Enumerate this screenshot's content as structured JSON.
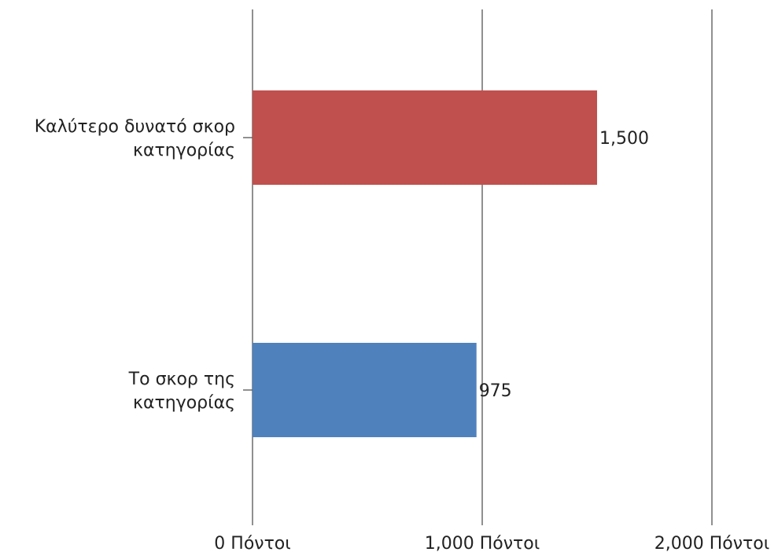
{
  "chart_data": {
    "type": "bar",
    "orientation": "horizontal",
    "categories": [
      [
        "Καλύτερο δυνατό σκορ",
        "κατηγορίας"
      ],
      [
        "Το σκορ της",
        "κατηγορίας"
      ]
    ],
    "values": [
      1500,
      975
    ],
    "value_labels": [
      "1,500",
      "975"
    ],
    "colors": [
      "#C0504D",
      "#4F81BD"
    ],
    "xlim": [
      0,
      2000
    ],
    "x_ticks": [
      0,
      1000,
      2000
    ],
    "x_tick_labels": [
      "0 Πόντοι",
      "1,000 Πόντοι",
      "2,000 Πόντοι"
    ],
    "grid": true,
    "legend": "none",
    "title": "",
    "xlabel": "",
    "ylabel": ""
  }
}
